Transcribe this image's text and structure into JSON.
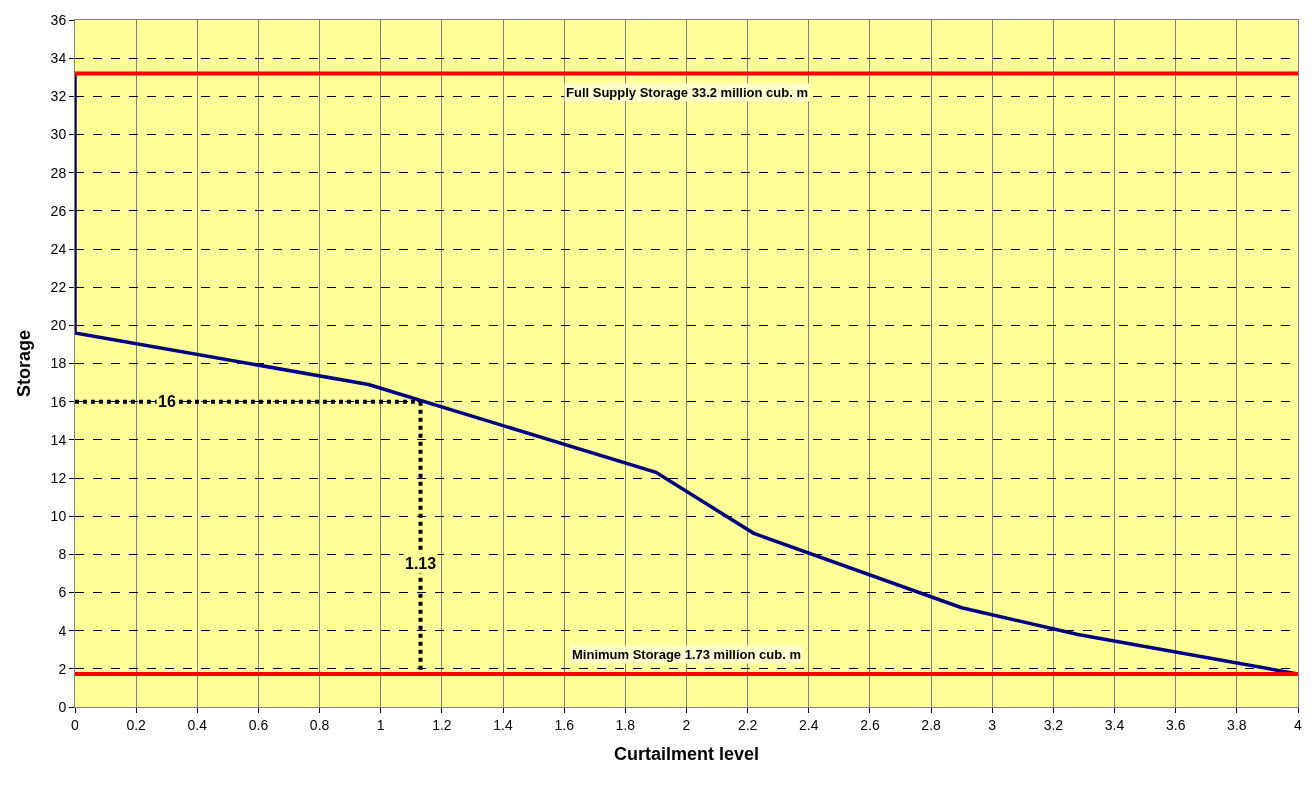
{
  "chart_data": {
    "type": "line",
    "xlabel": "Curtailment level",
    "ylabel": "Storage",
    "series": [
      {
        "color": "#000080",
        "x": [
          0,
          0,
          0.96,
          1.9,
          2.22,
          2.9,
          3.28,
          4
        ],
        "values": [
          33.2,
          19.6,
          16.9,
          12.3,
          9.1,
          5.2,
          3.8,
          1.73
        ]
      },
      {
        "color": "#000000",
        "line_style": "dotted",
        "x": [
          0,
          1.13
        ],
        "values": [
          16,
          16
        ]
      },
      {
        "color": "#000000",
        "line_style": "dotted",
        "x": [
          1.13,
          1.13
        ],
        "values": [
          16,
          1.73
        ]
      }
    ],
    "ref_lines": [
      {
        "axis": "y",
        "value": 33.2,
        "label": "Full Supply Storage 33.2 million cub. m",
        "color": "#ff0000"
      },
      {
        "axis": "y",
        "value": 1.73,
        "label": "Minimum Storage 1.73 million cub. m",
        "color": "#ff0000"
      }
    ],
    "annotations": [
      {
        "text": "16",
        "x": 0.3,
        "y": 16
      },
      {
        "text": "1.13",
        "x": 1.13,
        "y": 7.5
      }
    ],
    "xlim": [
      0,
      4
    ],
    "xticks": [
      0,
      0.2,
      0.4,
      0.6,
      0.8,
      1,
      1.2,
      1.4,
      1.6,
      1.8,
      2,
      2.2,
      2.4,
      2.6,
      2.8,
      3,
      3.2,
      3.4,
      3.6,
      3.8,
      4
    ],
    "ylim": [
      0,
      36
    ],
    "yticks": [
      0,
      2,
      4,
      6,
      8,
      10,
      12,
      14,
      16,
      18,
      20,
      22,
      24,
      26,
      28,
      30,
      32,
      34,
      36
    ],
    "grid": true,
    "marker": "none",
    "line_style": "solid"
  }
}
